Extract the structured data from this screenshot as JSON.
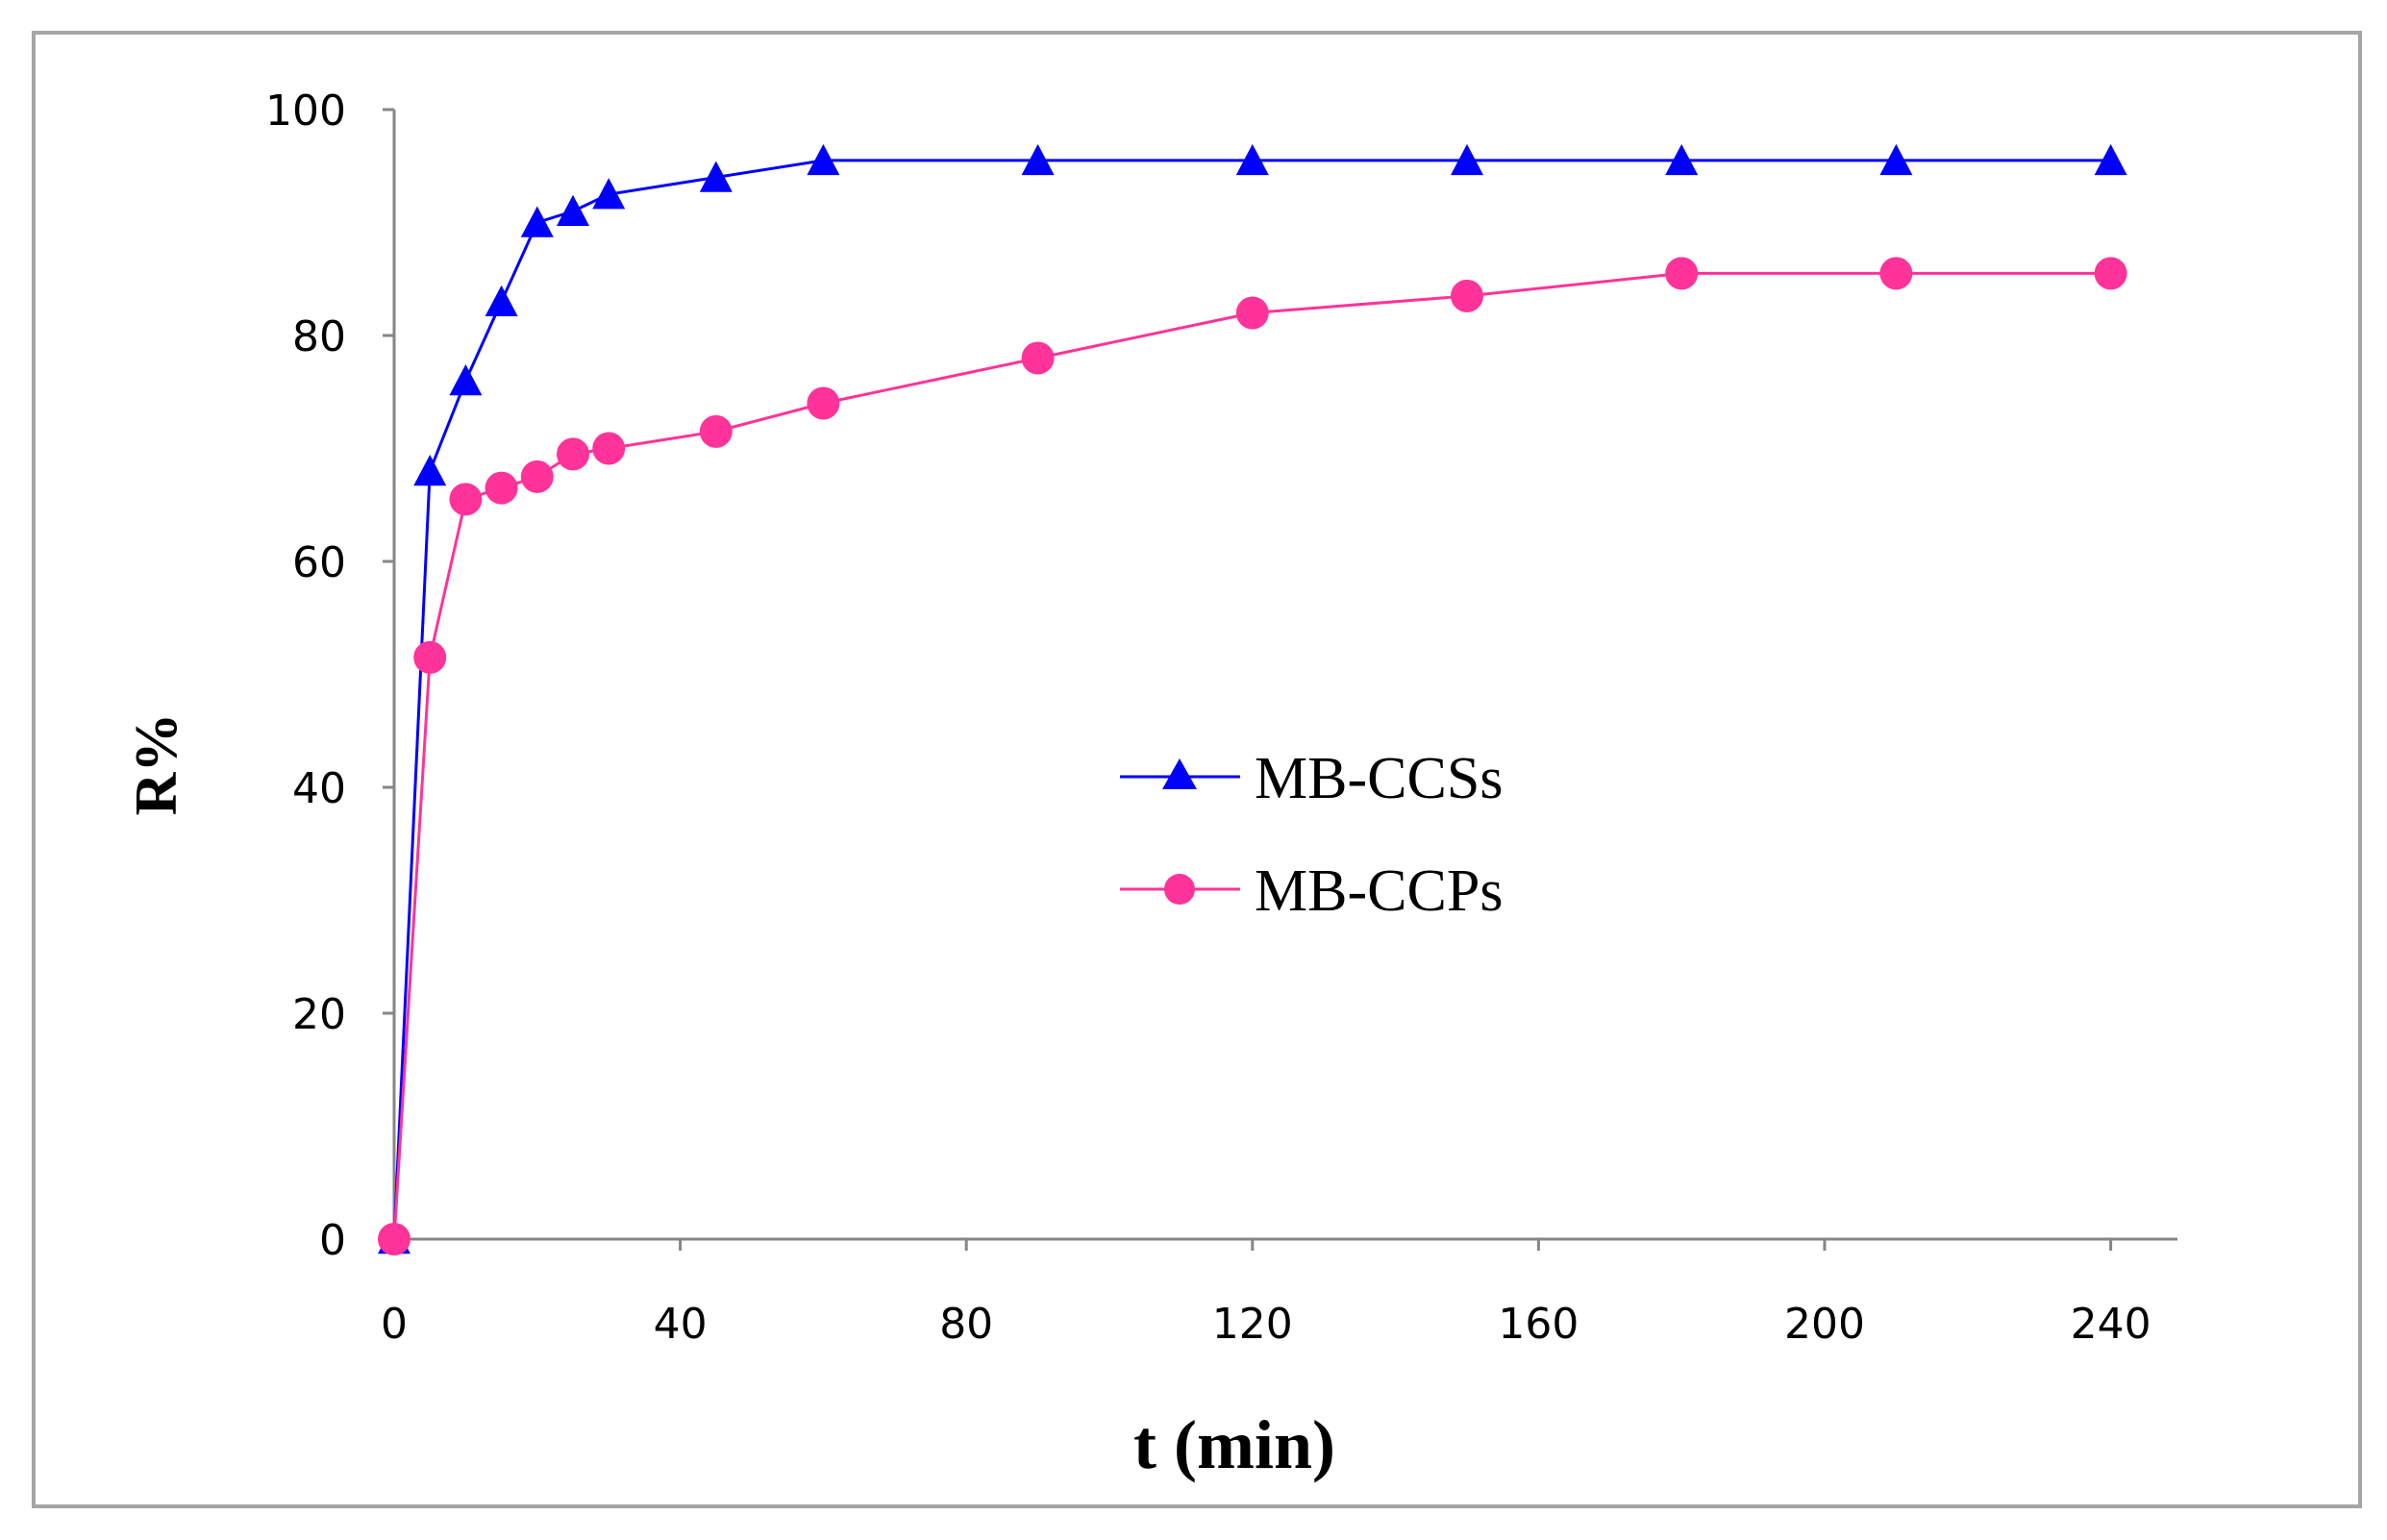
{
  "chart_data": {
    "type": "line",
    "title": "",
    "xlabel": "t (min)",
    "ylabel": "R%",
    "xlim": [
      0,
      250
    ],
    "ylim": [
      0,
      100
    ],
    "xticks": [
      0,
      40,
      80,
      120,
      160,
      200,
      240
    ],
    "yticks": [
      0,
      20,
      40,
      60,
      80,
      100
    ],
    "grid": false,
    "legend_position": "center-right",
    "series": [
      {
        "name": "MB-CCSs",
        "color": "#0000ff",
        "marker": "triangle",
        "x": [
          0,
          5,
          10,
          15,
          20,
          25,
          30,
          45,
          60,
          90,
          120,
          150,
          180,
          210,
          240
        ],
        "y": [
          0,
          68,
          76,
          83,
          90,
          91,
          92.5,
          94,
          95.5,
          95.5,
          95.5,
          95.5,
          95.5,
          95.5,
          95.5
        ]
      },
      {
        "name": "MB-CCPs",
        "color": "#ff3399",
        "marker": "circle",
        "x": [
          0,
          5,
          10,
          15,
          20,
          25,
          30,
          45,
          60,
          90,
          120,
          150,
          180,
          210,
          240
        ],
        "y": [
          0,
          51.5,
          65.5,
          66.5,
          67.5,
          69.5,
          70,
          71.5,
          74,
          78,
          82,
          83.5,
          85.5,
          85.5,
          85.5
        ]
      }
    ]
  }
}
